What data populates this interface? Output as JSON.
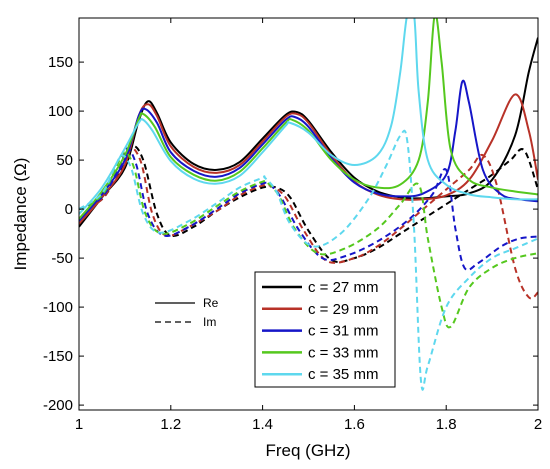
{
  "chart_data": {
    "type": "line",
    "title": "",
    "xlabel": "Freq (GHz)",
    "ylabel": "Impedance (Ω)",
    "xlim": [
      1,
      2
    ],
    "ylim": [
      -205,
      195
    ],
    "xticks": [
      1,
      1.2,
      1.4,
      1.6,
      1.8,
      2
    ],
    "xtick_labels": [
      "1",
      "1.2",
      "1.4",
      "1.6",
      "1.8",
      "2"
    ],
    "yticks": [
      -200,
      -150,
      -100,
      -50,
      0,
      50,
      100,
      150
    ],
    "ytick_labels": [
      "-200",
      "-150",
      "-100",
      "-50",
      "0",
      "50",
      "100",
      "150"
    ],
    "grid": false,
    "legend_position": "bottom-right",
    "style_legend": [
      {
        "label": "Re",
        "dash": "solid"
      },
      {
        "label": "Im",
        "dash": "dashed"
      }
    ],
    "series": [
      {
        "name": "c = 27 mm",
        "color": "#000000",
        "re": [
          [
            1.0,
            -18
          ],
          [
            1.05,
            12
          ],
          [
            1.1,
            42
          ],
          [
            1.13,
            90
          ],
          [
            1.15,
            110
          ],
          [
            1.17,
            98
          ],
          [
            1.2,
            68
          ],
          [
            1.25,
            46
          ],
          [
            1.3,
            40
          ],
          [
            1.35,
            48
          ],
          [
            1.4,
            72
          ],
          [
            1.45,
            96
          ],
          [
            1.475,
            99
          ],
          [
            1.5,
            90
          ],
          [
            1.55,
            58
          ],
          [
            1.6,
            32
          ],
          [
            1.65,
            18
          ],
          [
            1.7,
            12
          ],
          [
            1.75,
            11
          ],
          [
            1.8,
            13
          ],
          [
            1.85,
            16
          ],
          [
            1.9,
            30
          ],
          [
            1.95,
            75
          ],
          [
            1.98,
            140
          ],
          [
            2.0,
            175
          ]
        ],
        "im": [
          [
            1.0,
            0
          ],
          [
            1.05,
            10
          ],
          [
            1.09,
            40
          ],
          [
            1.115,
            64
          ],
          [
            1.14,
            50
          ],
          [
            1.17,
            -5
          ],
          [
            1.2,
            -27
          ],
          [
            1.25,
            -18
          ],
          [
            1.3,
            -2
          ],
          [
            1.35,
            12
          ],
          [
            1.4,
            22
          ],
          [
            1.43,
            22
          ],
          [
            1.46,
            12
          ],
          [
            1.5,
            -22
          ],
          [
            1.55,
            -52
          ],
          [
            1.6,
            -50
          ],
          [
            1.65,
            -40
          ],
          [
            1.7,
            -25
          ],
          [
            1.75,
            -10
          ],
          [
            1.8,
            5
          ],
          [
            1.85,
            20
          ],
          [
            1.9,
            35
          ],
          [
            1.94,
            50
          ],
          [
            1.97,
            60
          ],
          [
            2.0,
            20
          ]
        ]
      },
      {
        "name": "c = 29 mm",
        "color": "#b83228",
        "re": [
          [
            1.0,
            -15
          ],
          [
            1.05,
            12
          ],
          [
            1.1,
            45
          ],
          [
            1.13,
            95
          ],
          [
            1.15,
            107
          ],
          [
            1.17,
            95
          ],
          [
            1.2,
            64
          ],
          [
            1.25,
            43
          ],
          [
            1.3,
            37
          ],
          [
            1.35,
            45
          ],
          [
            1.4,
            69
          ],
          [
            1.45,
            94
          ],
          [
            1.475,
            97
          ],
          [
            1.5,
            88
          ],
          [
            1.55,
            55
          ],
          [
            1.6,
            28
          ],
          [
            1.65,
            15
          ],
          [
            1.7,
            10
          ],
          [
            1.75,
            10
          ],
          [
            1.8,
            14
          ],
          [
            1.85,
            30
          ],
          [
            1.9,
            70
          ],
          [
            1.95,
            117
          ],
          [
            1.98,
            80
          ],
          [
            2.0,
            30
          ]
        ],
        "im": [
          [
            1.0,
            0
          ],
          [
            1.05,
            10
          ],
          [
            1.09,
            42
          ],
          [
            1.11,
            63
          ],
          [
            1.135,
            48
          ],
          [
            1.16,
            -5
          ],
          [
            1.19,
            -27
          ],
          [
            1.24,
            -18
          ],
          [
            1.3,
            -2
          ],
          [
            1.35,
            14
          ],
          [
            1.4,
            24
          ],
          [
            1.42,
            23
          ],
          [
            1.45,
            12
          ],
          [
            1.49,
            -22
          ],
          [
            1.54,
            -53
          ],
          [
            1.6,
            -50
          ],
          [
            1.65,
            -38
          ],
          [
            1.7,
            -20
          ],
          [
            1.75,
            0
          ],
          [
            1.8,
            20
          ],
          [
            1.85,
            40
          ],
          [
            1.88,
            55
          ],
          [
            1.91,
            25
          ],
          [
            1.95,
            -60
          ],
          [
            1.98,
            -90
          ],
          [
            2.0,
            -85
          ]
        ]
      },
      {
        "name": "c = 31 mm",
        "color": "#1616c8",
        "re": [
          [
            1.0,
            -12
          ],
          [
            1.05,
            15
          ],
          [
            1.1,
            50
          ],
          [
            1.13,
            95
          ],
          [
            1.145,
            102
          ],
          [
            1.17,
            88
          ],
          [
            1.2,
            58
          ],
          [
            1.25,
            39
          ],
          [
            1.3,
            33
          ],
          [
            1.35,
            42
          ],
          [
            1.4,
            66
          ],
          [
            1.45,
            91
          ],
          [
            1.47,
            94
          ],
          [
            1.5,
            84
          ],
          [
            1.55,
            52
          ],
          [
            1.6,
            27
          ],
          [
            1.65,
            16
          ],
          [
            1.7,
            13
          ],
          [
            1.75,
            16
          ],
          [
            1.8,
            35
          ],
          [
            1.82,
            80
          ],
          [
            1.835,
            130
          ],
          [
            1.85,
            108
          ],
          [
            1.88,
            40
          ],
          [
            1.92,
            15
          ],
          [
            1.96,
            10
          ],
          [
            2.0,
            8
          ]
        ],
        "im": [
          [
            1.0,
            0
          ],
          [
            1.05,
            12
          ],
          [
            1.09,
            45
          ],
          [
            1.105,
            62
          ],
          [
            1.125,
            45
          ],
          [
            1.15,
            -5
          ],
          [
            1.185,
            -27
          ],
          [
            1.24,
            -18
          ],
          [
            1.3,
            0
          ],
          [
            1.35,
            16
          ],
          [
            1.4,
            26
          ],
          [
            1.415,
            25
          ],
          [
            1.44,
            12
          ],
          [
            1.48,
            -22
          ],
          [
            1.53,
            -50
          ],
          [
            1.58,
            -48
          ],
          [
            1.65,
            -33
          ],
          [
            1.72,
            -10
          ],
          [
            1.77,
            15
          ],
          [
            1.8,
            40
          ],
          [
            1.82,
            -20
          ],
          [
            1.84,
            -60
          ],
          [
            1.87,
            -55
          ],
          [
            1.92,
            -38
          ],
          [
            1.96,
            -30
          ],
          [
            2.0,
            -28
          ]
        ]
      },
      {
        "name": "c = 33 mm",
        "color": "#55c81e",
        "re": [
          [
            1.0,
            -10
          ],
          [
            1.05,
            18
          ],
          [
            1.1,
            55
          ],
          [
            1.13,
            92
          ],
          [
            1.14,
            97
          ],
          [
            1.165,
            84
          ],
          [
            1.2,
            53
          ],
          [
            1.25,
            35
          ],
          [
            1.3,
            29
          ],
          [
            1.35,
            38
          ],
          [
            1.4,
            62
          ],
          [
            1.45,
            88
          ],
          [
            1.465,
            91
          ],
          [
            1.5,
            80
          ],
          [
            1.55,
            50
          ],
          [
            1.6,
            30
          ],
          [
            1.65,
            22
          ],
          [
            1.7,
            25
          ],
          [
            1.74,
            50
          ],
          [
            1.76,
            110
          ],
          [
            1.775,
            198
          ],
          [
            1.79,
            150
          ],
          [
            1.81,
            60
          ],
          [
            1.85,
            30
          ],
          [
            1.9,
            22
          ],
          [
            1.95,
            18
          ],
          [
            2.0,
            15
          ]
        ],
        "im": [
          [
            1.0,
            0
          ],
          [
            1.05,
            14
          ],
          [
            1.08,
            42
          ],
          [
            1.1,
            58
          ],
          [
            1.12,
            42
          ],
          [
            1.145,
            -5
          ],
          [
            1.18,
            -25
          ],
          [
            1.24,
            -15
          ],
          [
            1.3,
            3
          ],
          [
            1.35,
            18
          ],
          [
            1.4,
            28
          ],
          [
            1.41,
            27
          ],
          [
            1.435,
            14
          ],
          [
            1.47,
            -20
          ],
          [
            1.52,
            -45
          ],
          [
            1.58,
            -40
          ],
          [
            1.65,
            -20
          ],
          [
            1.7,
            5
          ],
          [
            1.74,
            25
          ],
          [
            1.76,
            -30
          ],
          [
            1.79,
            -100
          ],
          [
            1.81,
            -120
          ],
          [
            1.85,
            -80
          ],
          [
            1.9,
            -60
          ],
          [
            1.95,
            -50
          ],
          [
            2.0,
            -45
          ]
        ]
      },
      {
        "name": "c = 35 mm",
        "color": "#5ed8ee",
        "re": [
          [
            1.0,
            -5
          ],
          [
            1.05,
            22
          ],
          [
            1.1,
            62
          ],
          [
            1.13,
            88
          ],
          [
            1.14,
            91
          ],
          [
            1.16,
            80
          ],
          [
            1.2,
            49
          ],
          [
            1.25,
            31
          ],
          [
            1.3,
            26
          ],
          [
            1.35,
            34
          ],
          [
            1.4,
            58
          ],
          [
            1.45,
            85
          ],
          [
            1.46,
            88
          ],
          [
            1.5,
            78
          ],
          [
            1.55,
            55
          ],
          [
            1.6,
            45
          ],
          [
            1.65,
            55
          ],
          [
            1.68,
            85
          ],
          [
            1.7,
            140
          ],
          [
            1.715,
            198
          ],
          [
            1.73,
            198
          ],
          [
            1.74,
            120
          ],
          [
            1.76,
            50
          ],
          [
            1.8,
            25
          ],
          [
            1.85,
            15
          ],
          [
            1.9,
            12
          ],
          [
            1.95,
            10
          ],
          [
            2.0,
            10
          ]
        ],
        "im": [
          [
            1.0,
            0
          ],
          [
            1.05,
            16
          ],
          [
            1.08,
            45
          ],
          [
            1.095,
            55
          ],
          [
            1.115,
            40
          ],
          [
            1.14,
            -5
          ],
          [
            1.175,
            -24
          ],
          [
            1.24,
            -12
          ],
          [
            1.3,
            6
          ],
          [
            1.35,
            22
          ],
          [
            1.4,
            32
          ],
          [
            1.405,
            32
          ],
          [
            1.43,
            18
          ],
          [
            1.46,
            -15
          ],
          [
            1.51,
            -38
          ],
          [
            1.57,
            -25
          ],
          [
            1.63,
            10
          ],
          [
            1.67,
            45
          ],
          [
            1.7,
            75
          ],
          [
            1.715,
            70
          ],
          [
            1.73,
            -20
          ],
          [
            1.745,
            -175
          ],
          [
            1.76,
            -160
          ],
          [
            1.8,
            -100
          ],
          [
            1.85,
            -70
          ],
          [
            1.9,
            -50
          ],
          [
            1.95,
            -40
          ],
          [
            2.0,
            -30
          ]
        ]
      }
    ]
  }
}
